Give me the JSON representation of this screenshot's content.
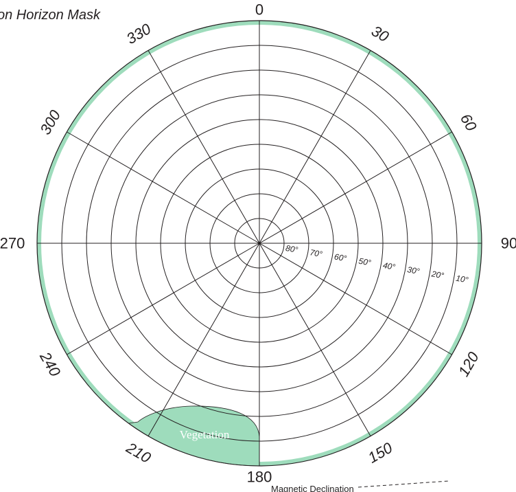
{
  "title": "on Horizon Mask",
  "azimuth_labels": [
    {
      "text": "0",
      "deg": 0,
      "rotate": false
    },
    {
      "text": "30",
      "deg": 30,
      "rotate": true
    },
    {
      "text": "60",
      "deg": 60,
      "rotate": true
    },
    {
      "text": "90",
      "deg": 90,
      "rotate": false
    },
    {
      "text": "120",
      "deg": 120,
      "rotate": true
    },
    {
      "text": "150",
      "deg": 150,
      "rotate": true
    },
    {
      "text": "180",
      "deg": 180,
      "rotate": false
    },
    {
      "text": "210",
      "deg": 210,
      "rotate": true
    },
    {
      "text": "240",
      "deg": 240,
      "rotate": true
    },
    {
      "text": "270",
      "deg": 270,
      "rotate": false
    },
    {
      "text": "300",
      "deg": 300,
      "rotate": true
    },
    {
      "text": "330",
      "deg": 330,
      "rotate": true
    }
  ],
  "elevation_labels": [
    {
      "text": "80°",
      "elevation": 80
    },
    {
      "text": "70°",
      "elevation": 70
    },
    {
      "text": "60°",
      "elevation": 60
    },
    {
      "text": "50°",
      "elevation": 50
    },
    {
      "text": "40°",
      "elevation": 40
    },
    {
      "text": "30°",
      "elevation": 30
    },
    {
      "text": "20°",
      "elevation": 20
    },
    {
      "text": "10°",
      "elevation": 10
    }
  ],
  "regions": {
    "vegetation_label": "Vegetation"
  },
  "legend": {
    "declination_label": "Magnetic Declination"
  },
  "colors": {
    "mask_fill": "#9edcbc",
    "grid_line": "#231f20",
    "dashed_line": "#231f20"
  }
}
